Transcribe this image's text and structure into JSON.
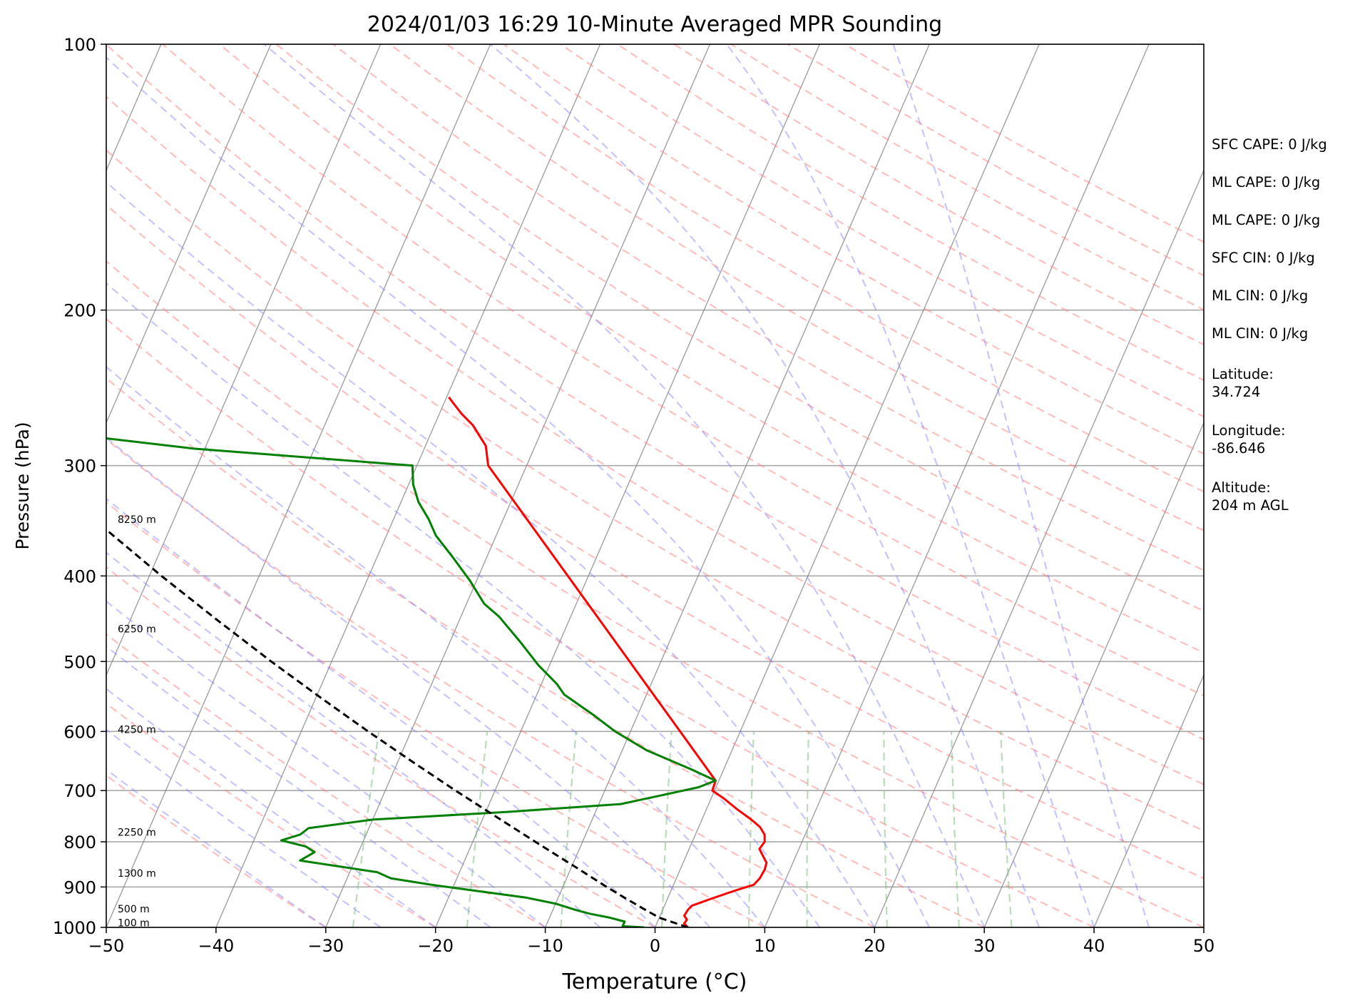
{
  "chart_data": {
    "type": "line",
    "title": "2024/01/03 16:29 10-Minute Averaged MPR Sounding",
    "xlabel": "Temperature (°C)",
    "ylabel": "Pressure (hPa)",
    "xlim": [
      -50,
      50
    ],
    "ylim": [
      1000,
      100
    ],
    "y_scale": "log",
    "skew": "skew-T log-P",
    "x_ticks": [
      "−50",
      "−40",
      "−30",
      "−20",
      "−10",
      "0",
      "10",
      "20",
      "30",
      "40",
      "50"
    ],
    "y_ticks": [
      "100",
      "200",
      "300",
      "400",
      "500",
      "600",
      "700",
      "800",
      "900",
      "1000"
    ],
    "grid": true,
    "series": [
      {
        "role": "temperature",
        "color": "#ff0000",
        "points": [
          {
            "p": 1000,
            "t": 3.0
          },
          {
            "p": 990,
            "t": 2.5
          },
          {
            "p": 980,
            "t": 2.6
          },
          {
            "p": 970,
            "t": 2.2
          },
          {
            "p": 955,
            "t": 2.3
          },
          {
            "p": 945,
            "t": 2.5
          },
          {
            "p": 930,
            "t": 3.8
          },
          {
            "p": 915,
            "t": 5.2
          },
          {
            "p": 905,
            "t": 6.2
          },
          {
            "p": 895,
            "t": 7.3
          },
          {
            "p": 880,
            "t": 7.6
          },
          {
            "p": 860,
            "t": 7.7
          },
          {
            "p": 845,
            "t": 7.6
          },
          {
            "p": 830,
            "t": 7.0
          },
          {
            "p": 815,
            "t": 6.4
          },
          {
            "p": 800,
            "t": 6.6
          },
          {
            "p": 785,
            "t": 6.3
          },
          {
            "p": 770,
            "t": 5.6
          },
          {
            "p": 755,
            "t": 4.5
          },
          {
            "p": 735,
            "t": 2.8
          },
          {
            "p": 715,
            "t": 1.2
          },
          {
            "p": 700,
            "t": -0.2
          },
          {
            "p": 682,
            "t": -0.3
          },
          {
            "p": 300,
            "t": -33.5
          },
          {
            "p": 285,
            "t": -34.5
          },
          {
            "p": 270,
            "t": -36.5
          },
          {
            "p": 262,
            "t": -38.0
          },
          {
            "p": 251,
            "t": -39.8
          }
        ]
      },
      {
        "role": "dewpoint",
        "color": "#008000",
        "points": [
          {
            "p": 1000,
            "t": -1.0
          },
          {
            "p": 997,
            "t": -3.0
          },
          {
            "p": 993,
            "t": -3.0
          },
          {
            "p": 985,
            "t": -3.0
          },
          {
            "p": 975,
            "t": -4.5
          },
          {
            "p": 965,
            "t": -6.5
          },
          {
            "p": 955,
            "t": -8.0
          },
          {
            "p": 940,
            "t": -10.0
          },
          {
            "p": 925,
            "t": -13.0
          },
          {
            "p": 910,
            "t": -17.5
          },
          {
            "p": 895,
            "t": -22.0
          },
          {
            "p": 880,
            "t": -26.0
          },
          {
            "p": 866,
            "t": -27.5
          },
          {
            "p": 840,
            "t": -35.0
          },
          {
            "p": 822,
            "t": -34.0
          },
          {
            "p": 810,
            "t": -35.0
          },
          {
            "p": 797,
            "t": -37.5
          },
          {
            "p": 785,
            "t": -36.0
          },
          {
            "p": 772,
            "t": -35.5
          },
          {
            "p": 755,
            "t": -30.0
          },
          {
            "p": 740,
            "t": -18.0
          },
          {
            "p": 725,
            "t": -8.0
          },
          {
            "p": 708,
            "t": -4.5
          },
          {
            "p": 694,
            "t": -1.6
          },
          {
            "p": 682,
            "t": -0.3
          },
          {
            "p": 662,
            "t": -3.0
          },
          {
            "p": 630,
            "t": -7.8
          },
          {
            "p": 600,
            "t": -11.4
          },
          {
            "p": 575,
            "t": -14.0
          },
          {
            "p": 545,
            "t": -17.5
          },
          {
            "p": 530,
            "t": -18.6
          },
          {
            "p": 505,
            "t": -21.0
          },
          {
            "p": 475,
            "t": -23.6
          },
          {
            "p": 445,
            "t": -26.5
          },
          {
            "p": 430,
            "t": -28.4
          },
          {
            "p": 405,
            "t": -30.6
          },
          {
            "p": 380,
            "t": -33.2
          },
          {
            "p": 360,
            "t": -35.5
          },
          {
            "p": 345,
            "t": -36.8
          },
          {
            "p": 330,
            "t": -38.4
          },
          {
            "p": 315,
            "t": -39.6
          },
          {
            "p": 300,
            "t": -40.4
          },
          {
            "p": 287,
            "t": -61.0
          },
          {
            "p": 278,
            "t": -71.0
          }
        ]
      },
      {
        "role": "parcel",
        "color": "#000000",
        "points": [
          {
            "p": 1000,
            "t": 3.0
          },
          {
            "p": 975,
            "t": 0.0
          },
          {
            "p": 950,
            "t": -2.0
          },
          {
            "p": 925,
            "t": -4.0
          },
          {
            "p": 900,
            "t": -6.0
          },
          {
            "p": 850,
            "t": -10.0
          },
          {
            "p": 800,
            "t": -14.3
          },
          {
            "p": 750,
            "t": -18.8
          },
          {
            "p": 700,
            "t": -23.6
          },
          {
            "p": 650,
            "t": -28.6
          },
          {
            "p": 600,
            "t": -33.9
          },
          {
            "p": 550,
            "t": -39.5
          },
          {
            "p": 500,
            "t": -45.5
          },
          {
            "p": 450,
            "t": -51.9
          },
          {
            "p": 400,
            "t": -58.9
          },
          {
            "p": 350,
            "t": -66.5
          },
          {
            "p": 300,
            "t": -75.0
          },
          {
            "p": 271,
            "t": -80.5
          }
        ]
      }
    ],
    "height_labels": [
      {
        "p": 988,
        "text": "100 m"
      },
      {
        "p": 953,
        "text": "500 m"
      },
      {
        "p": 868,
        "text": "1300 m"
      },
      {
        "p": 780,
        "text": "2250 m"
      },
      {
        "p": 597,
        "text": "4250 m"
      },
      {
        "p": 459,
        "text": "6250 m"
      },
      {
        "p": 345,
        "text": "8250 m"
      }
    ],
    "reference_lines": {
      "isotherm_color": "#808080",
      "dry_adiabat_color": "#ff8080",
      "moist_adiabat_color": "#8080ff",
      "mixing_ratio_color": "#80c080"
    }
  },
  "info_panel": [
    "SFC CAPE: 0 J/kg",
    "ML CAPE: 0 J/kg",
    "ML CAPE: 0 J/kg",
    "SFC CIN: 0 J/kg",
    "ML CIN: 0 J/kg",
    "ML CIN: 0 J/kg",
    "Latitude:",
    "34.724",
    "Longitude:",
    "-86.646",
    "Altitude:",
    "204 m AGL"
  ]
}
